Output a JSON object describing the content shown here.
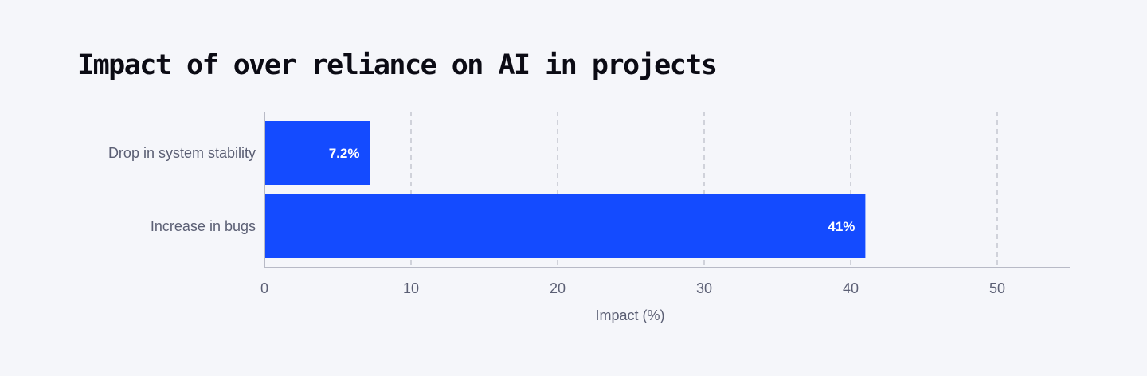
{
  "chart_data": {
    "type": "bar",
    "orientation": "horizontal",
    "title": "Impact of over reliance on AI in projects",
    "categories": [
      "Drop in system stability",
      "Increase in bugs"
    ],
    "values": [
      7.2,
      41
    ],
    "value_labels": [
      "7.2%",
      "41%"
    ],
    "xlabel": "Impact (%)",
    "ylabel": "",
    "xlim": [
      0,
      55
    ],
    "xticks": [
      0,
      10,
      20,
      30,
      40,
      50
    ],
    "grid": "vertical-dashed",
    "legend": "none"
  },
  "colors": {
    "bar": "#144bff",
    "grid": "#c4c6d0",
    "axis": "#b8bac6",
    "background": "#f5f6fa"
  }
}
